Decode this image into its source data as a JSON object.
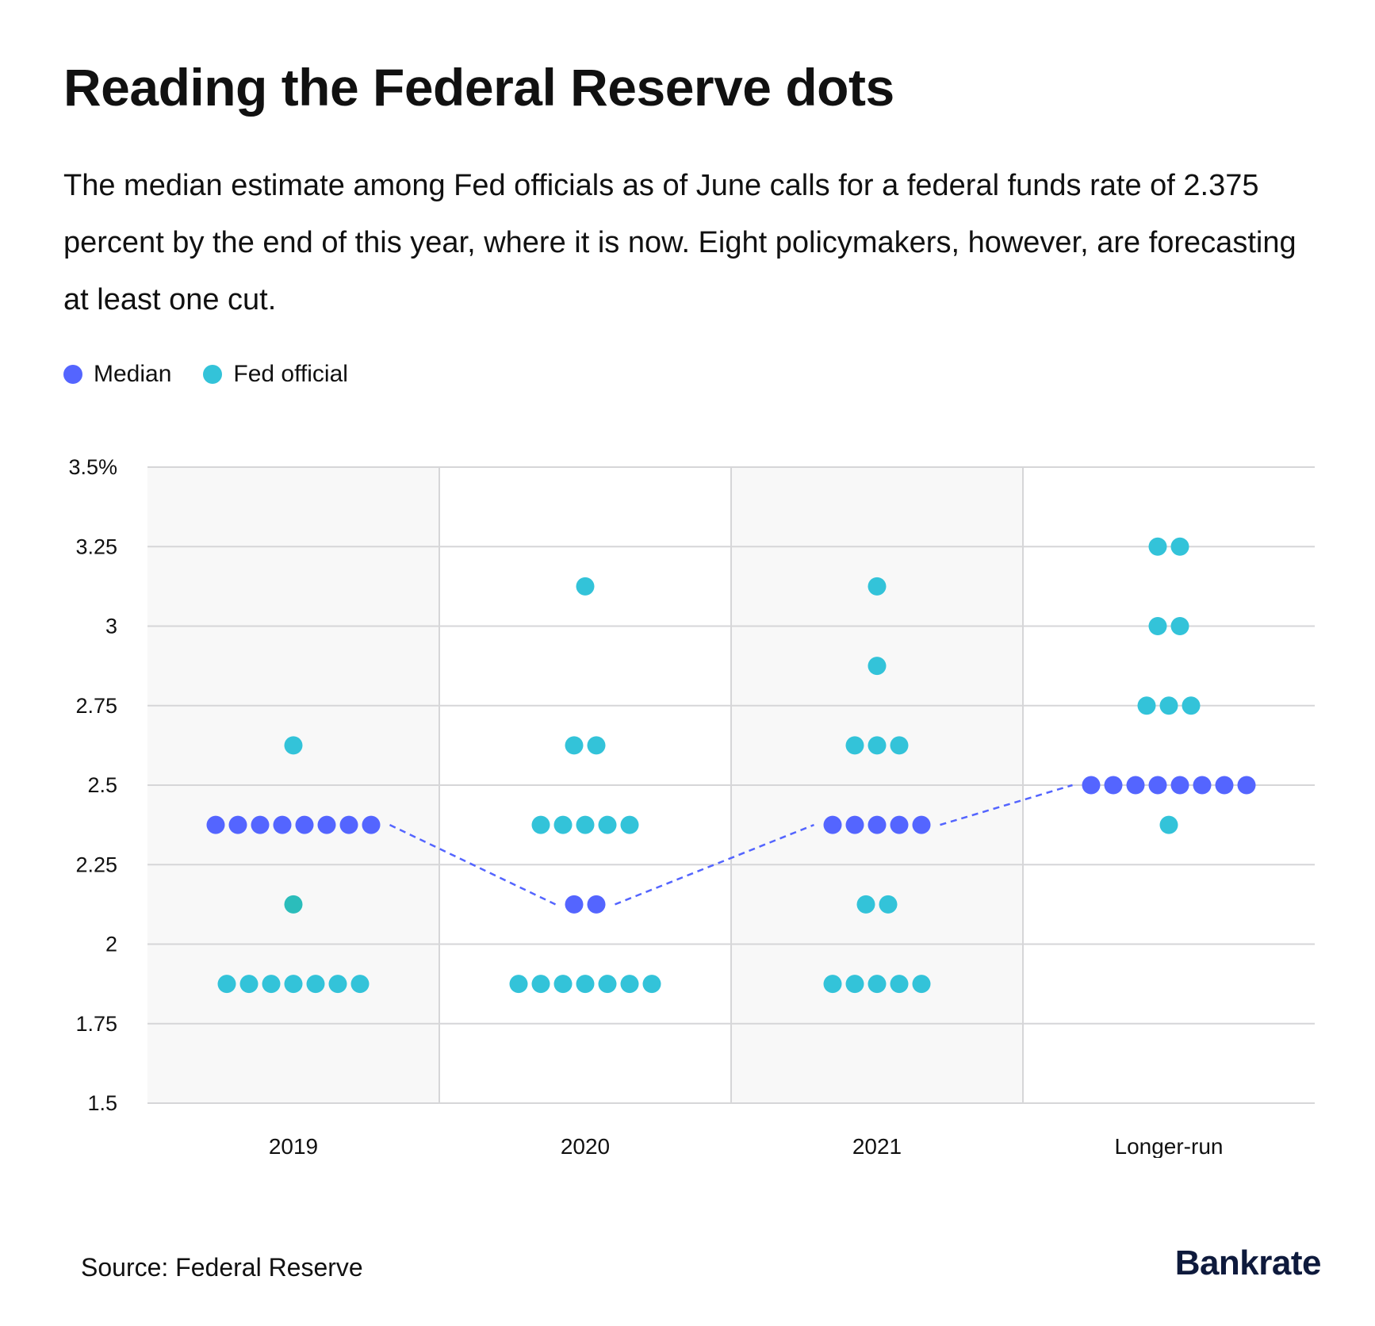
{
  "title": "Reading the Federal Reserve dots",
  "subtitle": "The median estimate among Fed officials as of June calls for a federal funds rate of 2.375 percent by the end of this year, where it is now. Eight policymakers, however, are forecasting at least one cut.",
  "source": "Source: Federal Reserve",
  "logo": "Bankrate",
  "chart_data": {
    "type": "scatter",
    "subtype": "dot-plot",
    "categories": [
      "2019",
      "2020",
      "2021",
      "Longer-run"
    ],
    "ylim": [
      1.5,
      3.5
    ],
    "yticks": [
      1.5,
      1.75,
      2,
      2.25,
      2.5,
      2.75,
      3,
      3.25,
      3.5
    ],
    "ytick_labels": [
      "1.5",
      "1.75",
      "2",
      "2.25",
      "2.5",
      "2.75",
      "3",
      "3.25",
      "3.5%"
    ],
    "grid": true,
    "legend": [
      {
        "name": "Median",
        "color": "#5465ff"
      },
      {
        "name": "Fed official",
        "color": "#33c3d9"
      }
    ],
    "legend_position": "top-left",
    "columns": [
      {
        "category": "2019",
        "median": 2.375,
        "dots": [
          {
            "rate": 2.625,
            "count": 1
          },
          {
            "rate": 2.375,
            "count": 8,
            "median": true
          },
          {
            "rate": 2.125,
            "count": 1
          },
          {
            "rate": 1.875,
            "count": 7
          }
        ]
      },
      {
        "category": "2020",
        "median": 2.125,
        "dots": [
          {
            "rate": 3.125,
            "count": 1
          },
          {
            "rate": 2.625,
            "count": 2
          },
          {
            "rate": 2.375,
            "count": 5
          },
          {
            "rate": 2.125,
            "count": 2,
            "median": true
          },
          {
            "rate": 1.875,
            "count": 7
          }
        ]
      },
      {
        "category": "2021",
        "median": 2.375,
        "dots": [
          {
            "rate": 3.125,
            "count": 1
          },
          {
            "rate": 2.875,
            "count": 1
          },
          {
            "rate": 2.625,
            "count": 3
          },
          {
            "rate": 2.375,
            "count": 5,
            "median": true
          },
          {
            "rate": 2.125,
            "count": 2
          },
          {
            "rate": 1.875,
            "count": 5
          }
        ]
      },
      {
        "category": "Longer-run",
        "median": 2.5,
        "dots": [
          {
            "rate": 3.25,
            "count": 2
          },
          {
            "rate": 3.0,
            "count": 2
          },
          {
            "rate": 2.75,
            "count": 3
          },
          {
            "rate": 2.5,
            "count": 8,
            "median": true
          },
          {
            "rate": 2.375,
            "count": 1
          }
        ]
      }
    ]
  }
}
